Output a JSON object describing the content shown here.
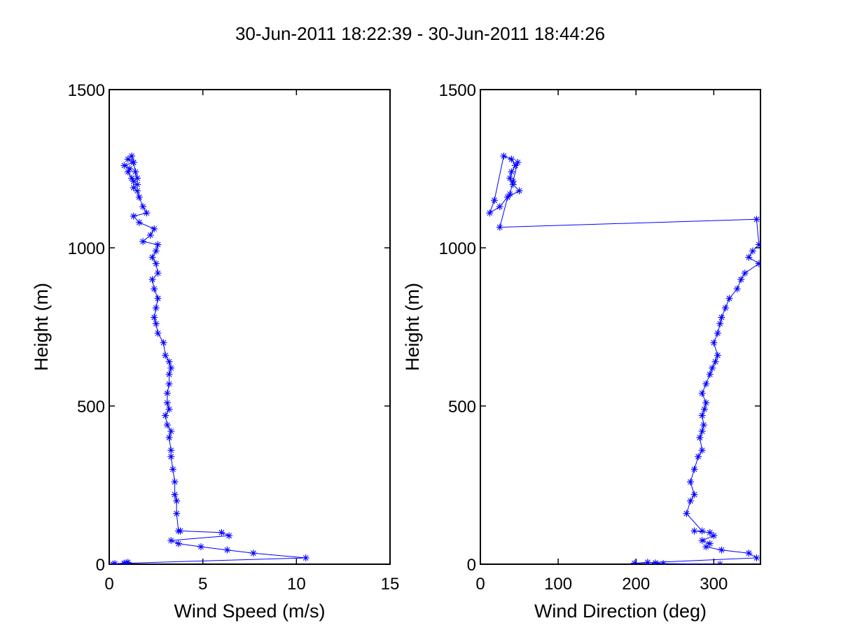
{
  "title": "30-Jun-2011 18:22:39 - 30-Jun-2011 18:44:26",
  "colors": {
    "series": "#0000ff",
    "axes": "#000000",
    "background": "#ffffff"
  },
  "chart_data": [
    {
      "type": "line",
      "marker": "asterisk",
      "xlabel": "Wind Speed (m/s)",
      "ylabel": "Height (m)",
      "xlim": [
        0,
        15
      ],
      "ylim": [
        0,
        1500
      ],
      "xticks": [
        "0",
        "5",
        "10",
        "15"
      ],
      "yticks": [
        "0",
        "500",
        "1000",
        "1500"
      ],
      "grid": false,
      "series": [
        {
          "x": [
            0.2,
            0.8,
            0.9,
            1.0,
            0.8,
            0.3,
            10.5,
            7.7,
            6.3,
            4.9,
            3.7,
            3.3,
            6.4,
            6.0,
            3.8,
            3.7,
            3.6,
            3.6,
            3.5,
            3.5,
            3.4,
            3.3,
            3.3,
            3.2,
            3.3,
            3.1,
            3.0,
            3.2,
            3.1,
            3.1,
            3.2,
            3.2,
            3.3,
            3.2,
            3.0,
            2.9,
            2.6,
            2.5,
            2.4,
            2.5,
            2.6,
            2.4,
            2.3,
            2.6,
            2.5,
            2.3,
            2.5,
            2.6,
            1.8,
            2.2,
            2.4,
            1.6,
            1.3,
            2.0,
            1.8,
            1.6,
            1.5,
            1.3,
            1.3,
            1.2,
            1.0,
            1.1,
            0.8,
            1.3,
            1.0,
            1.2,
            1.3,
            1.4,
            1.5,
            1.5
          ],
          "y": [
            0,
            2,
            4,
            6,
            3,
            2,
            20,
            35,
            45,
            55,
            65,
            75,
            90,
            100,
            105,
            105,
            160,
            200,
            220,
            260,
            300,
            340,
            360,
            400,
            420,
            440,
            470,
            490,
            510,
            540,
            570,
            600,
            620,
            640,
            660,
            700,
            730,
            760,
            780,
            810,
            840,
            870,
            900,
            920,
            950,
            970,
            990,
            1010,
            1020,
            1040,
            1060,
            1080,
            1100,
            1110,
            1130,
            1160,
            1180,
            1190,
            1210,
            1220,
            1240,
            1250,
            1260,
            1270,
            1280,
            1290,
            1270,
            1240,
            1220,
            1200
          ]
        }
      ]
    },
    {
      "type": "line",
      "marker": "asterisk",
      "xlabel": "Wind Direction (deg)",
      "ylabel": "Height (m)",
      "xlim": [
        0,
        360
      ],
      "ylim": [
        0,
        1500
      ],
      "xticks": [
        "0",
        "100",
        "200",
        "300"
      ],
      "yticks": [
        "0",
        "500",
        "1000",
        "1500"
      ],
      "grid": false,
      "series": [
        {
          "x": [
            308,
            235,
            225,
            215,
            198,
            355,
            345,
            310,
            290,
            295,
            285,
            300,
            295,
            275,
            285,
            265,
            270,
            275,
            270,
            275,
            280,
            285,
            282,
            285,
            287,
            285,
            288,
            290,
            285,
            290,
            295,
            298,
            302,
            305,
            300,
            305,
            308,
            310,
            315,
            320,
            330,
            335,
            340,
            358,
            345,
            350,
            358,
            355,
            25,
            35,
            50,
            42,
            38,
            40,
            45,
            40,
            30,
            18,
            12,
            25,
            38,
            42,
            48
          ],
          "y": [
            0,
            2,
            4,
            6,
            3,
            20,
            35,
            45,
            55,
            65,
            75,
            90,
            100,
            105,
            105,
            160,
            200,
            220,
            260,
            300,
            340,
            360,
            400,
            420,
            440,
            470,
            490,
            510,
            540,
            570,
            600,
            620,
            640,
            660,
            700,
            730,
            760,
            780,
            810,
            840,
            870,
            900,
            920,
            950,
            970,
            990,
            1010,
            1090,
            1065,
            1160,
            1180,
            1200,
            1220,
            1240,
            1260,
            1280,
            1290,
            1150,
            1110,
            1130,
            1170,
            1210,
            1270
          ]
        }
      ]
    }
  ]
}
